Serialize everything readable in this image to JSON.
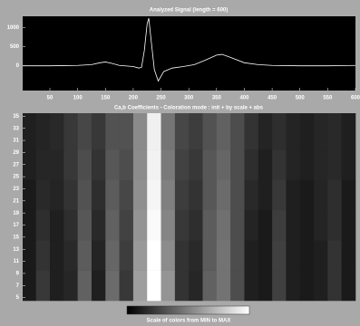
{
  "chart_data": [
    {
      "type": "line",
      "title": "Analyzed Signal (length = 600)",
      "x": [
        1,
        25,
        50,
        75,
        100,
        125,
        140,
        150,
        160,
        175,
        200,
        210,
        215,
        220,
        225,
        228,
        232,
        238,
        245,
        255,
        270,
        290,
        310,
        330,
        350,
        360,
        375,
        400,
        425,
        450,
        500,
        550,
        600
      ],
      "series": [
        {
          "color": "#ffffff",
          "values": [
            0,
            0,
            0,
            5,
            10,
            30,
            80,
            100,
            70,
            10,
            -20,
            -60,
            -40,
            400,
            1100,
            1250,
            700,
            -100,
            -400,
            -150,
            -60,
            -20,
            30,
            150,
            280,
            300,
            220,
            80,
            30,
            10,
            0,
            0,
            10
          ]
        }
      ],
      "xlim": [
        1,
        600
      ],
      "xticks": [
        50,
        100,
        150,
        200,
        250,
        300,
        350,
        400,
        450,
        500,
        550,
        600
      ],
      "ylim": [
        -650,
        1300
      ],
      "yticks": [
        0,
        500,
        1000
      ]
    },
    {
      "type": "heatmap",
      "title": "Ca,b Coefficients  - Coloration mode : init + by scale + abs",
      "x_bins": [
        0,
        25,
        50,
        75,
        100,
        125,
        150,
        175,
        200,
        225,
        250,
        275,
        300,
        325,
        350,
        375,
        400,
        425,
        450,
        475,
        500,
        525,
        550,
        575,
        600
      ],
      "y_bins": [
        4.5,
        9.5,
        14.5,
        19.5,
        24.5,
        29.5,
        35.5
      ],
      "values": [
        [
          10,
          22,
          12,
          15,
          38,
          12,
          42,
          22,
          62,
          100,
          58,
          20,
          15,
          38,
          45,
          30,
          12,
          10,
          25,
          12,
          10,
          12,
          20,
          10
        ],
        [
          10,
          20,
          12,
          16,
          36,
          14,
          40,
          24,
          60,
          100,
          55,
          20,
          16,
          36,
          45,
          30,
          12,
          10,
          25,
          12,
          10,
          12,
          20,
          10
        ],
        [
          10,
          18,
          12,
          18,
          34,
          16,
          38,
          26,
          58,
          98,
          52,
          22,
          18,
          36,
          44,
          30,
          14,
          10,
          24,
          12,
          10,
          14,
          18,
          10
        ],
        [
          10,
          16,
          14,
          20,
          32,
          18,
          36,
          28,
          56,
          96,
          50,
          24,
          20,
          34,
          42,
          30,
          16,
          12,
          22,
          12,
          10,
          14,
          18,
          10
        ],
        [
          12,
          15,
          15,
          22,
          30,
          20,
          34,
          30,
          55,
          95,
          48,
          26,
          22,
          34,
          40,
          30,
          18,
          12,
          20,
          14,
          12,
          15,
          16,
          12
        ],
        [
          12,
          14,
          16,
          22,
          28,
          22,
          32,
          32,
          54,
          94,
          46,
          28,
          24,
          32,
          38,
          30,
          20,
          14,
          18,
          14,
          12,
          15,
          16,
          12
        ]
      ],
      "xlim": [
        1,
        600
      ],
      "ylim": [
        4.5,
        35.5
      ],
      "yticks": [
        5,
        7,
        9,
        11,
        13,
        15,
        17,
        19,
        21,
        23,
        25,
        27,
        29,
        31,
        33,
        35
      ],
      "colorbar_label": "Scale of colors from MIN to MAX"
    }
  ]
}
